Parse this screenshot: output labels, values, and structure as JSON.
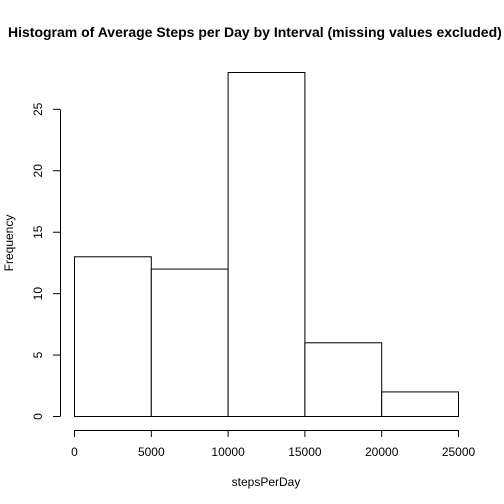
{
  "chart_data": {
    "type": "bar",
    "title": "Histogram of Average Steps per Day by Interval (missing values excluded)",
    "xlabel": "stepsPerDay",
    "ylabel": "Frequency",
    "bins": [
      {
        "from": 0,
        "to": 5000,
        "count": 13
      },
      {
        "from": 5000,
        "to": 10000,
        "count": 12
      },
      {
        "from": 10000,
        "to": 15000,
        "count": 28
      },
      {
        "from": 15000,
        "to": 20000,
        "count": 6
      },
      {
        "from": 20000,
        "to": 25000,
        "count": 2
      }
    ],
    "xlim": [
      0,
      25000
    ],
    "ylim": [
      0,
      28
    ],
    "x_ticks": [
      0,
      5000,
      10000,
      15000,
      20000,
      25000
    ],
    "y_ticks": [
      0,
      5,
      10,
      15,
      20,
      25
    ],
    "grid": false,
    "bar_fill": "#ffffff",
    "bar_stroke": "#000000"
  }
}
